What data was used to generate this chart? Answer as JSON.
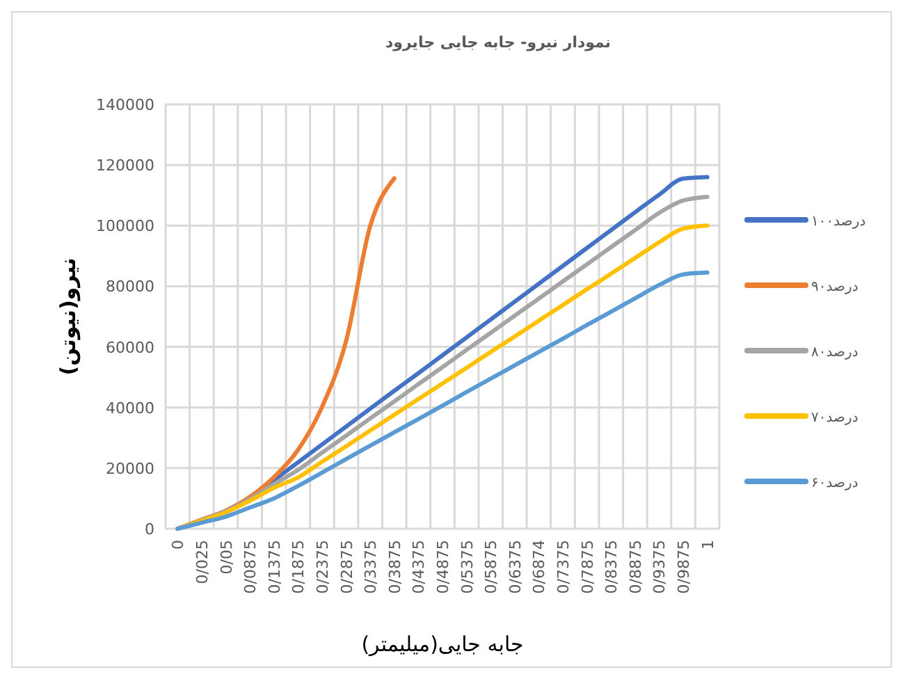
{
  "chart_data": {
    "type": "line",
    "title": "نمودار نیرو- جابه جایی جایرود",
    "xlabel": "جابه جایی(میلیمتر)",
    "ylabel": "نیرو(نیوتن)",
    "categories": [
      "0",
      "0/025",
      "0/05",
      "0/0875",
      "0/1375",
      "0/1875",
      "0/2375",
      "0/2875",
      "0/3375",
      "0/3875",
      "0/4375",
      "0/4875",
      "0/5375",
      "0/5875",
      "0/6375",
      "0/6874",
      "0/7375",
      "0/7875",
      "0/8375",
      "0/8875",
      "0/9375",
      "0/9875",
      "1"
    ],
    "ylim": [
      0,
      140000
    ],
    "yticks": [
      0,
      20000,
      40000,
      60000,
      80000,
      100000,
      120000,
      140000
    ],
    "grid": true,
    "legend": "right",
    "series": [
      {
        "name": "درصد۱۰۰",
        "color": "#4472c4",
        "values": [
          0,
          2800,
          5800,
          10000,
          16000,
          21900,
          27800,
          33700,
          39600,
          45500,
          51300,
          57200,
          63100,
          69000,
          74900,
          80800,
          86700,
          92600,
          98500,
          104400,
          110200,
          115500,
          116000
        ]
      },
      {
        "name": "درصد۹۰",
        "color": "#ed7d31",
        "values": [
          0,
          3000,
          6000,
          10500,
          17000,
          26000,
          40200,
          62000,
          99900,
          115600,
          null,
          null,
          null,
          null,
          null,
          null,
          null,
          null,
          null,
          null,
          null,
          null,
          null
        ]
      },
      {
        "name": "درصد۸۰",
        "color": "#a5a5a5",
        "values": [
          0,
          2800,
          5800,
          9800,
          14700,
          19400,
          25100,
          30700,
          36400,
          42000,
          47700,
          53300,
          59000,
          64600,
          70300,
          75900,
          81600,
          87200,
          92900,
          98500,
          104200,
          108300,
          109500
        ]
      },
      {
        "name": "درصد۷۰",
        "color": "#ffc000",
        "values": [
          0,
          2600,
          5400,
          9200,
          13500,
          16900,
          22100,
          27200,
          32400,
          37600,
          42800,
          47900,
          53100,
          58300,
          63400,
          68600,
          73800,
          79000,
          84100,
          89300,
          94500,
          99000,
          100000
        ]
      },
      {
        "name": "درصد۶۰",
        "color": "#5b9bd5",
        "values": [
          0,
          2000,
          4000,
          7000,
          10000,
          14100,
          18500,
          23000,
          27400,
          31800,
          36200,
          40600,
          45100,
          49500,
          53900,
          58300,
          62700,
          67200,
          71600,
          76000,
          80400,
          83900,
          84500
        ]
      }
    ]
  }
}
